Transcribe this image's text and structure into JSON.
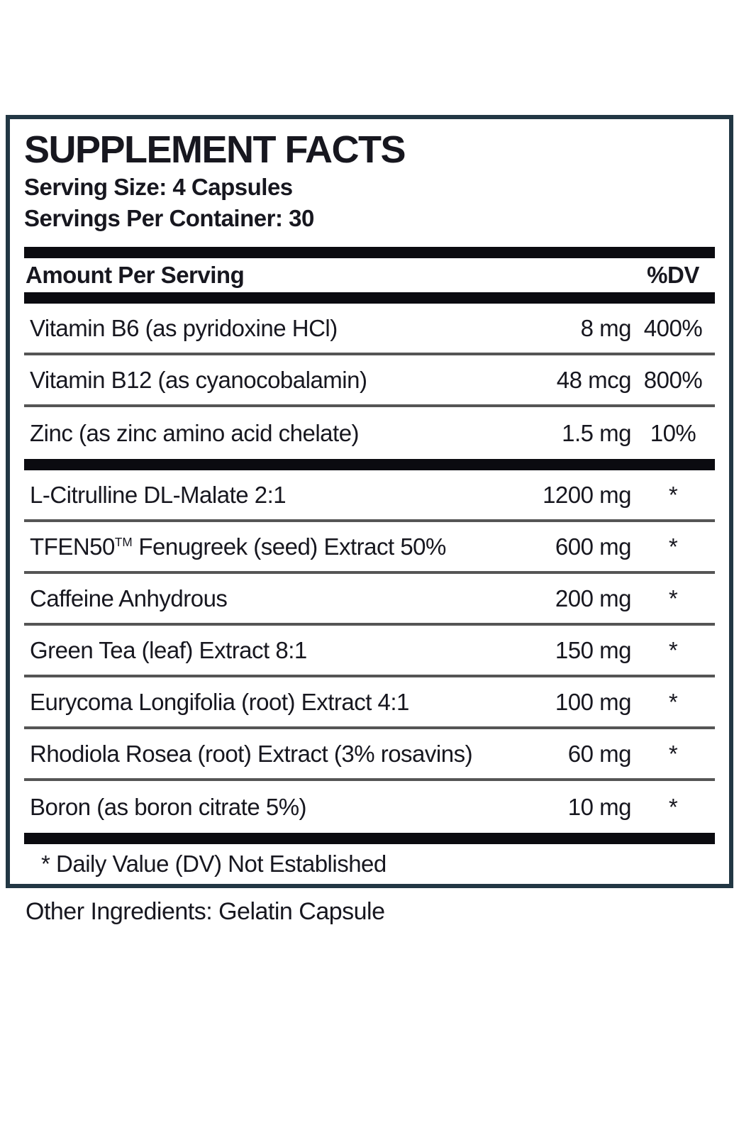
{
  "panel": {
    "title": "SUPPLEMENT FACTS",
    "serving_size": "Serving Size: 4 Capsules",
    "servings_per_container": "Servings Per Container: 30",
    "header": {
      "amount_label": "Amount Per Serving",
      "dv_label": "%DV"
    },
    "rows": [
      {
        "name": "Vitamin B6 (as pyridoxine HCl)",
        "amount": "8 mg",
        "dv": "400%"
      },
      {
        "name": "Vitamin B12 (as cyanocobalamin)",
        "amount": "48 mcg",
        "dv": "800%"
      },
      {
        "name": "Zinc (as zinc amino acid chelate)",
        "amount": "1.5 mg",
        "dv": "10%"
      },
      {
        "name": "L-Citrulline DL-Malate 2:1",
        "amount": "1200 mg",
        "dv": "*"
      },
      {
        "name_pre": "TFEN50",
        "name_sup": "TM",
        "name_post": " Fenugreek (seed) Extract 50%",
        "amount": "600 mg",
        "dv": "*"
      },
      {
        "name": "Caffeine Anhydrous",
        "amount": "200 mg",
        "dv": "*"
      },
      {
        "name": "Green Tea (leaf) Extract 8:1",
        "amount": "150 mg",
        "dv": "*"
      },
      {
        "name": "Eurycoma Longifolia (root) Extract 4:1",
        "amount": "100 mg",
        "dv": "*"
      },
      {
        "name": "Rhodiola Rosea (root) Extract (3% rosavins)",
        "amount": "60 mg",
        "dv": "*"
      },
      {
        "name": "Boron (as boron citrate 5%)",
        "amount": "10 mg",
        "dv": "*"
      }
    ],
    "footnote": "* Daily Value (DV) Not Established",
    "other_ingredients": "Other Ingredients: Gelatin Capsule"
  },
  "colors": {
    "frame": "#223744",
    "text": "#17171f",
    "bar": "#0b0b10",
    "rule": "#555555",
    "background": "#ffffff"
  }
}
